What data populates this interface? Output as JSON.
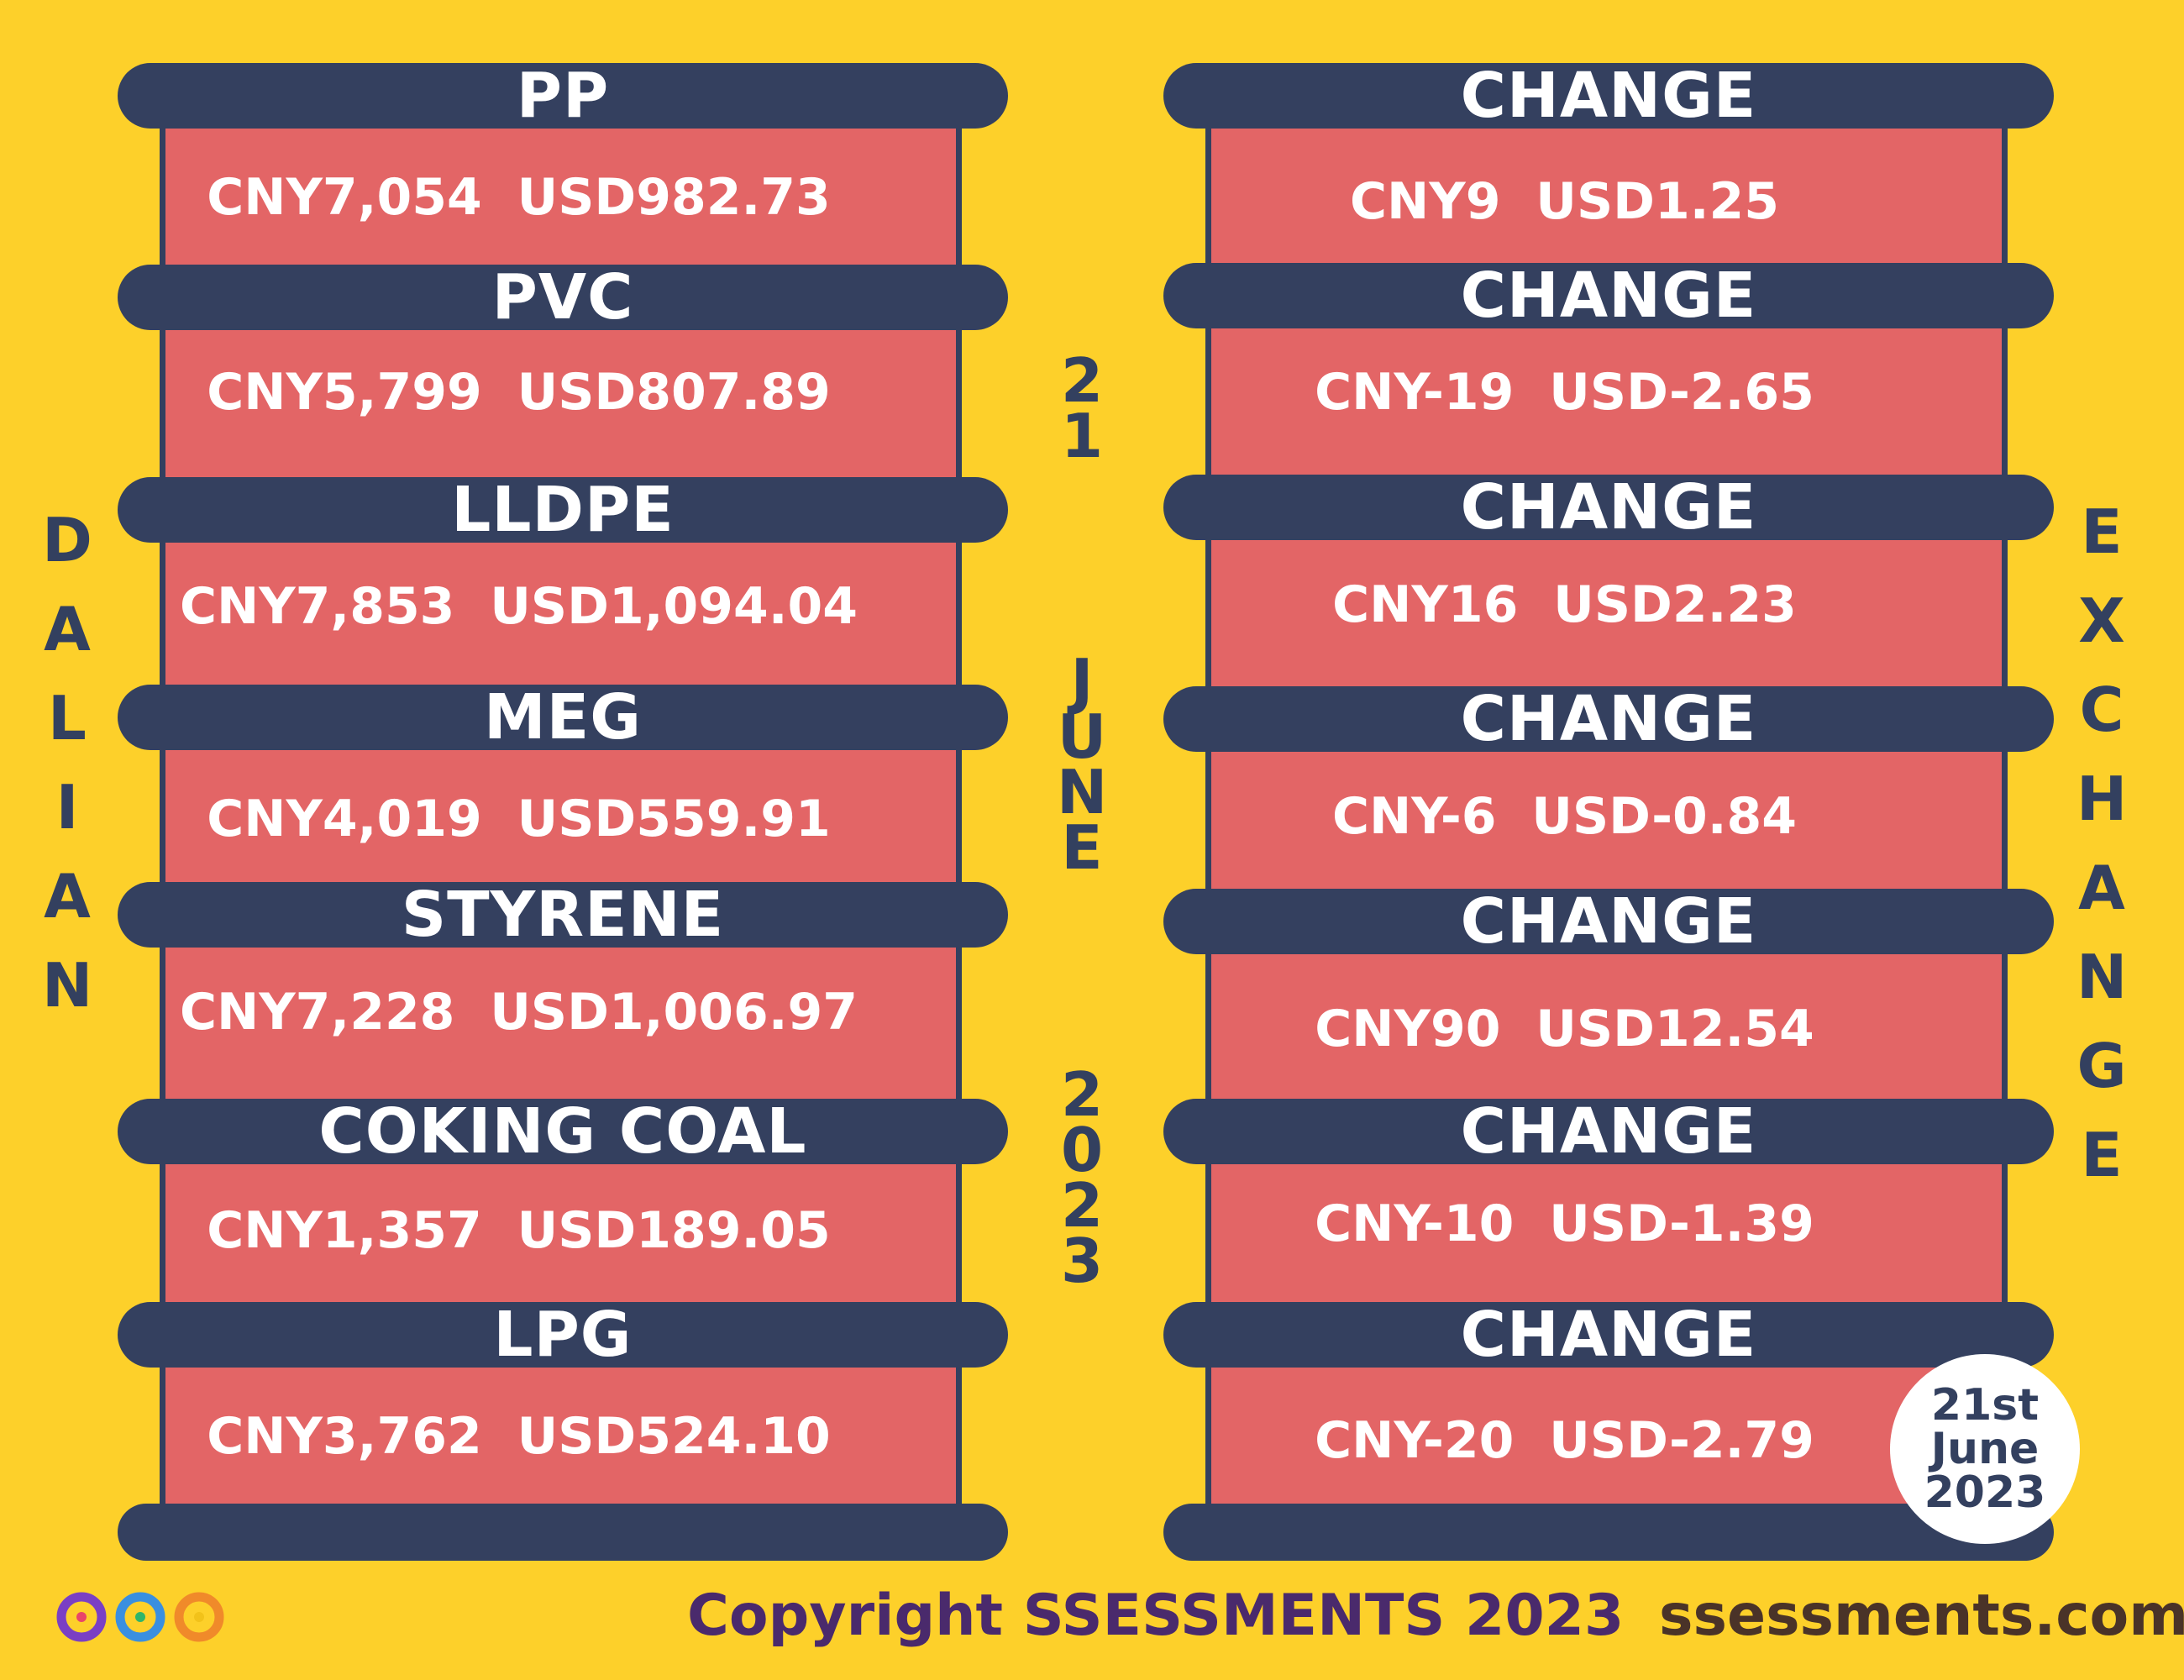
{
  "left_title": "DALIAN",
  "right_title": "EXCHANGE",
  "date_vertical": {
    "day": "21",
    "month": "JUNE",
    "year": "2023"
  },
  "commodities": [
    {
      "name": "PP",
      "price": "CNY7,054  USD982.73"
    },
    {
      "name": "PVC",
      "price": "CNY5,799  USD807.89"
    },
    {
      "name": "LLDPE",
      "price": "CNY7,853  USD1,094.04"
    },
    {
      "name": "MEG",
      "price": "CNY4,019  USD559.91"
    },
    {
      "name": "STYRENE",
      "price": "CNY7,228  USD1,006.97"
    },
    {
      "name": "COKING COAL",
      "price": "CNY1,357  USD189.05"
    },
    {
      "name": "LPG",
      "price": "CNY3,762  USD524.10"
    }
  ],
  "changes": [
    {
      "label": "CHANGE",
      "value": "CNY9  USD1.25"
    },
    {
      "label": "CHANGE",
      "value": "CNY-19  USD-2.65"
    },
    {
      "label": "CHANGE",
      "value": "CNY16  USD2.23"
    },
    {
      "label": "CHANGE",
      "value": "CNY-6  USD-0.84"
    },
    {
      "label": "CHANGE",
      "value": "CNY90  USD12.54"
    },
    {
      "label": "CHANGE",
      "value": "CNY-10  USD-1.39"
    },
    {
      "label": "CHANGE",
      "value": "CNY-20  USD-2.79"
    }
  ],
  "date_badge": {
    "line1": "21st",
    "line2": "June",
    "line3": "2023"
  },
  "footer": {
    "copyright": "Copyright SSESSMENTS 2023",
    "website": "ssessments.com"
  },
  "colors": {
    "background": "#fdd02a",
    "bar": "#34405f",
    "panel": "#e36566",
    "text_light": "#ffffff"
  },
  "icons": {
    "logo": "ssessments-infinity-logo"
  }
}
